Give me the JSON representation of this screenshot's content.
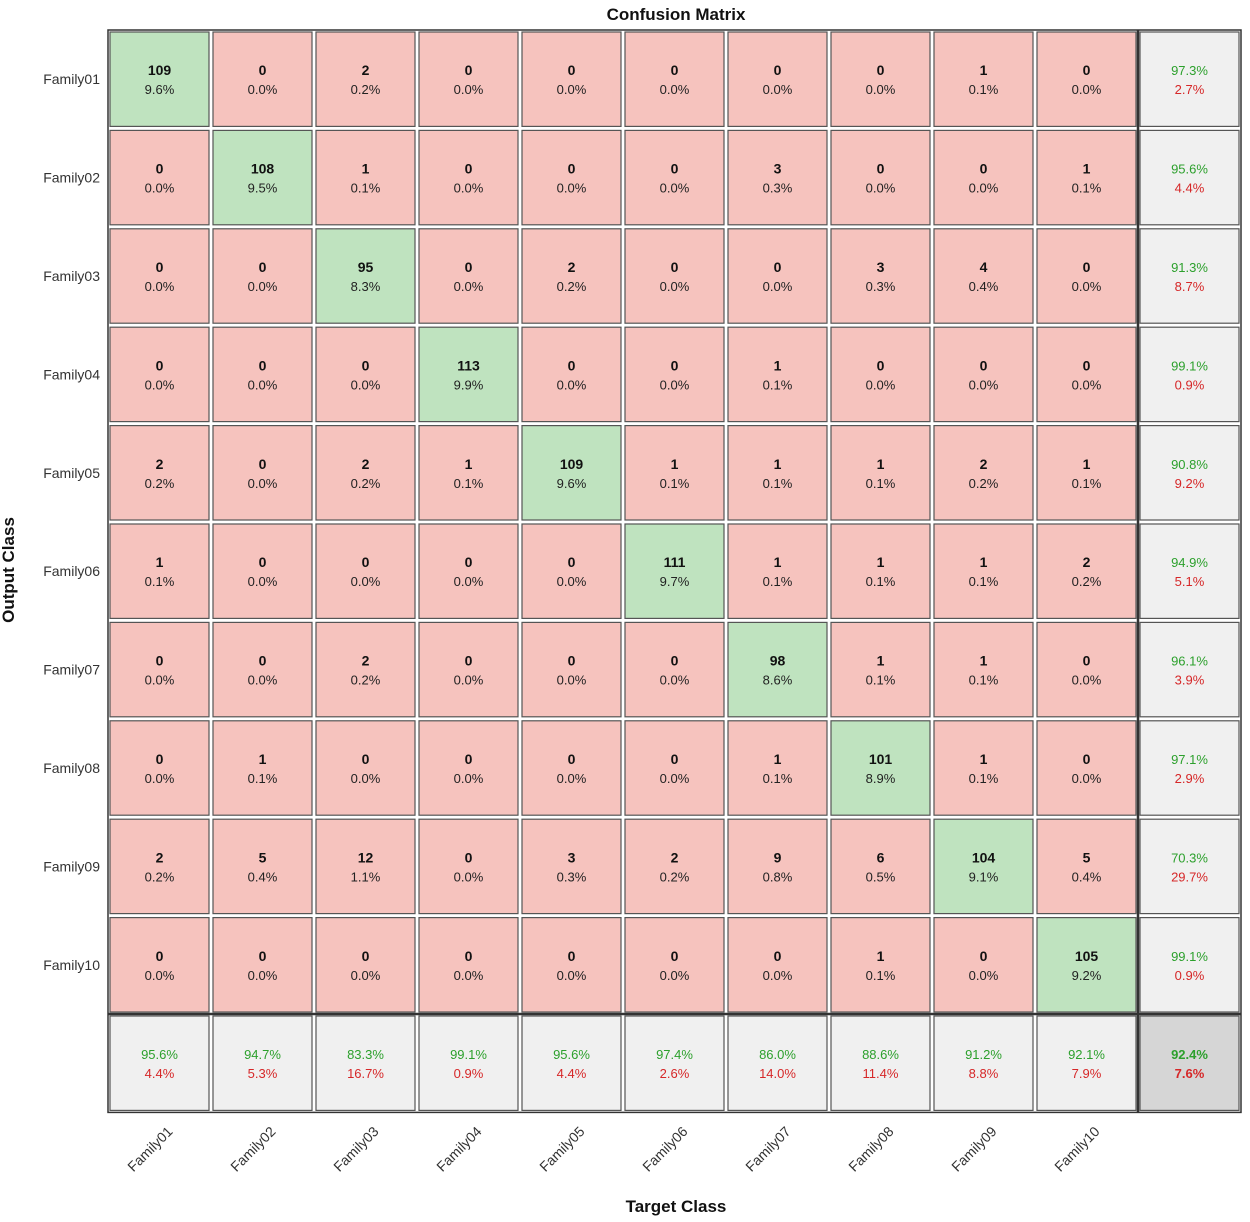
{
  "chart_data": {
    "type": "heatmap",
    "title": "Confusion Matrix",
    "xlabel": "Target Class",
    "ylabel": "Output Class",
    "row_labels": [
      "Family01",
      "Family02",
      "Family03",
      "Family04",
      "Family05",
      "Family06",
      "Family07",
      "Family08",
      "Family09",
      "Family10"
    ],
    "col_labels": [
      "Family01",
      "Family02",
      "Family03",
      "Family04",
      "Family05",
      "Family06",
      "Family07",
      "Family08",
      "Family09",
      "Family10"
    ],
    "counts": [
      [
        109,
        0,
        2,
        0,
        0,
        0,
        0,
        0,
        1,
        0
      ],
      [
        0,
        108,
        1,
        0,
        0,
        0,
        3,
        0,
        0,
        1
      ],
      [
        0,
        0,
        95,
        0,
        2,
        0,
        0,
        3,
        4,
        0
      ],
      [
        0,
        0,
        0,
        113,
        0,
        0,
        1,
        0,
        0,
        0
      ],
      [
        2,
        0,
        2,
        1,
        109,
        1,
        1,
        1,
        2,
        1
      ],
      [
        1,
        0,
        0,
        0,
        0,
        111,
        1,
        1,
        1,
        2
      ],
      [
        0,
        0,
        2,
        0,
        0,
        0,
        98,
        1,
        1,
        0
      ],
      [
        0,
        1,
        0,
        0,
        0,
        0,
        1,
        101,
        1,
        0
      ],
      [
        2,
        5,
        12,
        0,
        3,
        2,
        9,
        6,
        104,
        5
      ],
      [
        0,
        0,
        0,
        0,
        0,
        0,
        0,
        1,
        0,
        105
      ]
    ],
    "percents": [
      [
        "9.6%",
        "0.0%",
        "0.2%",
        "0.0%",
        "0.0%",
        "0.0%",
        "0.0%",
        "0.0%",
        "0.1%",
        "0.0%"
      ],
      [
        "0.0%",
        "9.5%",
        "0.1%",
        "0.0%",
        "0.0%",
        "0.0%",
        "0.3%",
        "0.0%",
        "0.0%",
        "0.1%"
      ],
      [
        "0.0%",
        "0.0%",
        "8.3%",
        "0.0%",
        "0.2%",
        "0.0%",
        "0.0%",
        "0.3%",
        "0.4%",
        "0.0%"
      ],
      [
        "0.0%",
        "0.0%",
        "0.0%",
        "9.9%",
        "0.0%",
        "0.0%",
        "0.1%",
        "0.0%",
        "0.0%",
        "0.0%"
      ],
      [
        "0.2%",
        "0.0%",
        "0.2%",
        "0.1%",
        "9.6%",
        "0.1%",
        "0.1%",
        "0.1%",
        "0.2%",
        "0.1%"
      ],
      [
        "0.1%",
        "0.0%",
        "0.0%",
        "0.0%",
        "0.0%",
        "9.7%",
        "0.1%",
        "0.1%",
        "0.1%",
        "0.2%"
      ],
      [
        "0.0%",
        "0.0%",
        "0.2%",
        "0.0%",
        "0.0%",
        "0.0%",
        "8.6%",
        "0.1%",
        "0.1%",
        "0.0%"
      ],
      [
        "0.0%",
        "0.1%",
        "0.0%",
        "0.0%",
        "0.0%",
        "0.0%",
        "0.1%",
        "8.9%",
        "0.1%",
        "0.0%"
      ],
      [
        "0.2%",
        "0.4%",
        "1.1%",
        "0.0%",
        "0.3%",
        "0.2%",
        "0.8%",
        "0.5%",
        "9.1%",
        "0.4%"
      ],
      [
        "0.0%",
        "0.0%",
        "0.0%",
        "0.0%",
        "0.0%",
        "0.0%",
        "0.0%",
        "0.1%",
        "0.0%",
        "9.2%"
      ]
    ],
    "row_summary": [
      {
        "correct": "97.3%",
        "wrong": "2.7%"
      },
      {
        "correct": "95.6%",
        "wrong": "4.4%"
      },
      {
        "correct": "91.3%",
        "wrong": "8.7%"
      },
      {
        "correct": "99.1%",
        "wrong": "0.9%"
      },
      {
        "correct": "90.8%",
        "wrong": "9.2%"
      },
      {
        "correct": "94.9%",
        "wrong": "5.1%"
      },
      {
        "correct": "96.1%",
        "wrong": "3.9%"
      },
      {
        "correct": "97.1%",
        "wrong": "2.9%"
      },
      {
        "correct": "70.3%",
        "wrong": "29.7%"
      },
      {
        "correct": "99.1%",
        "wrong": "0.9%"
      }
    ],
    "col_summary": [
      {
        "correct": "95.6%",
        "wrong": "4.4%"
      },
      {
        "correct": "94.7%",
        "wrong": "5.3%"
      },
      {
        "correct": "83.3%",
        "wrong": "16.7%"
      },
      {
        "correct": "99.1%",
        "wrong": "0.9%"
      },
      {
        "correct": "95.6%",
        "wrong": "4.4%"
      },
      {
        "correct": "97.4%",
        "wrong": "2.6%"
      },
      {
        "correct": "86.0%",
        "wrong": "14.0%"
      },
      {
        "correct": "88.6%",
        "wrong": "11.4%"
      },
      {
        "correct": "91.2%",
        "wrong": "8.8%"
      },
      {
        "correct": "92.1%",
        "wrong": "7.9%"
      }
    ],
    "overall": {
      "correct": "92.4%",
      "wrong": "7.6%"
    },
    "colors": {
      "diagonal": "#bfe3bf",
      "off_diagonal": "#f6c3be",
      "summary": "#f0f0f0",
      "overall": "#d6d6d6",
      "correct_text": "#2ca02c",
      "wrong_text": "#d62728",
      "border": "#555555"
    }
  }
}
